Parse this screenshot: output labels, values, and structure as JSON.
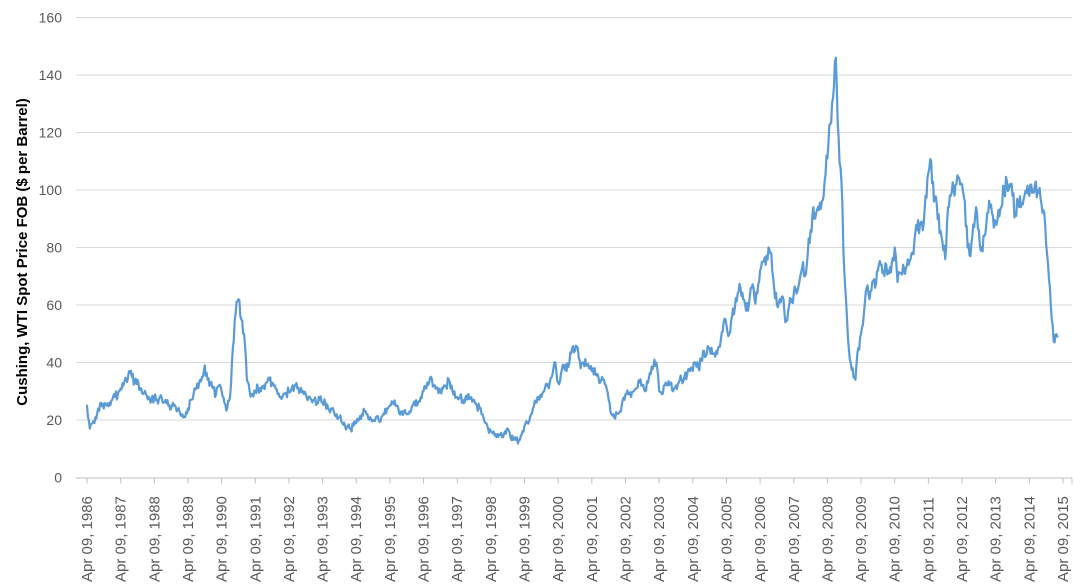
{
  "chart_data": {
    "type": "line",
    "title": "",
    "xlabel": "",
    "ylabel": "Cushing, WTI Spot Price FOB ($ per Barrel)",
    "ylim": [
      0,
      160
    ],
    "y_ticks": [
      0,
      20,
      40,
      60,
      80,
      100,
      120,
      140,
      160
    ],
    "x_tick_labels": [
      "Apr 09, 1986",
      "Apr 09, 1987",
      "Apr 09, 1988",
      "Apr 09, 1989",
      "Apr 09, 1990",
      "Apr 09, 1991",
      "Apr 09, 1992",
      "Apr 09, 1993",
      "Apr 09, 1994",
      "Apr 09, 1995",
      "Apr 09, 1996",
      "Apr 09, 1997",
      "Apr 09, 1998",
      "Apr 09, 1999",
      "Apr 09, 2000",
      "Apr 09, 2001",
      "Apr 09, 2002",
      "Apr 09, 2003",
      "Apr 09, 2004",
      "Apr 09, 2005",
      "Apr 09, 2006",
      "Apr 09, 2007",
      "Apr 09, 2008",
      "Apr 09, 2009",
      "Apr 09, 2010",
      "Apr 09, 2011",
      "Apr 09, 2012",
      "Apr 09, 2013",
      "Apr 09, 2014",
      "Apr 09, 2015"
    ],
    "grid": "horizontal",
    "legend_position": "none",
    "gridline_color": "#D9D9D9",
    "axis_line_color": "#BFBFBF",
    "axis_label_color": "#595959",
    "series": [
      {
        "name": "Cushing, WTI Spot Price FOB",
        "color": "#5B9BD5",
        "frequency": "monthly",
        "x_start": "1986-04",
        "x_end": "2015-02",
        "values": [
          25,
          17,
          19,
          21,
          24,
          26,
          24,
          25,
          26,
          27,
          28,
          29,
          31,
          32,
          34,
          37,
          35,
          33,
          34,
          31,
          29,
          29,
          28,
          27,
          28,
          27,
          28,
          26,
          27,
          25,
          24,
          25,
          23,
          23,
          22,
          21,
          24,
          27,
          29,
          31,
          33,
          35,
          39,
          34,
          33,
          31,
          29,
          32,
          30,
          26,
          24,
          28,
          45,
          57,
          62,
          55,
          50,
          34,
          30,
          29,
          30,
          31,
          30,
          32,
          33,
          34,
          33,
          32,
          29,
          28,
          29,
          29,
          30,
          31,
          32,
          31,
          30,
          30,
          29,
          28,
          27,
          27,
          26,
          27,
          26,
          26,
          24,
          24,
          23,
          22,
          21,
          19,
          18,
          18,
          17,
          18,
          19,
          20,
          22,
          23,
          22,
          21,
          20,
          21,
          20,
          21,
          22,
          24,
          25,
          26,
          25,
          24,
          23,
          23,
          22,
          23,
          25,
          25,
          26,
          28,
          30,
          31,
          33,
          34,
          32,
          31,
          30,
          31,
          32,
          34,
          32,
          30,
          28,
          28,
          27,
          28,
          29,
          28,
          27,
          25,
          24,
          22,
          19,
          17,
          16,
          16,
          14,
          15,
          14,
          16,
          17,
          14,
          13,
          13,
          13,
          15,
          18,
          19,
          21,
          24,
          26,
          28,
          28,
          30,
          32,
          33,
          36,
          40,
          33,
          36,
          39,
          37,
          40,
          45,
          44,
          45,
          38,
          40,
          39,
          38,
          37,
          38,
          36,
          33,
          34,
          32,
          27,
          22,
          21,
          22,
          23,
          27,
          29,
          29,
          28,
          30,
          31,
          33,
          32,
          30,
          33,
          36,
          39,
          40,
          30,
          29,
          32,
          32,
          33,
          30,
          32,
          33,
          34,
          35,
          36,
          37,
          37,
          40,
          38,
          41,
          44,
          43,
          45,
          43,
          42,
          45,
          48,
          54,
          53,
          50,
          56,
          59,
          64,
          66,
          62,
          58,
          60,
          66,
          62,
          64,
          72,
          75,
          74,
          80,
          78,
          66,
          60,
          62,
          63,
          54,
          58,
          61,
          64,
          64,
          68,
          73,
          70,
          78,
          86,
          94,
          92,
          93,
          96,
          103,
          111,
          123,
          132,
          146,
          118,
          103,
          72,
          55,
          41,
          38,
          34,
          45,
          50,
          57,
          66,
          62,
          68,
          66,
          72,
          74,
          72,
          74,
          71,
          75,
          80,
          68,
          71,
          74,
          73,
          74,
          78,
          82,
          86,
          88,
          86,
          98,
          106,
          110,
          96,
          95,
          85,
          82,
          76,
          94,
          98,
          100,
          102,
          104,
          102,
          96,
          80,
          77,
          88,
          94,
          86,
          80,
          84,
          92,
          94,
          91,
          88,
          93,
          94,
          100,
          103,
          102,
          98,
          92,
          96,
          94,
          97,
          99,
          98,
          99,
          102,
          100,
          97,
          93,
          81,
          69,
          55,
          47,
          49
        ]
      }
    ]
  }
}
